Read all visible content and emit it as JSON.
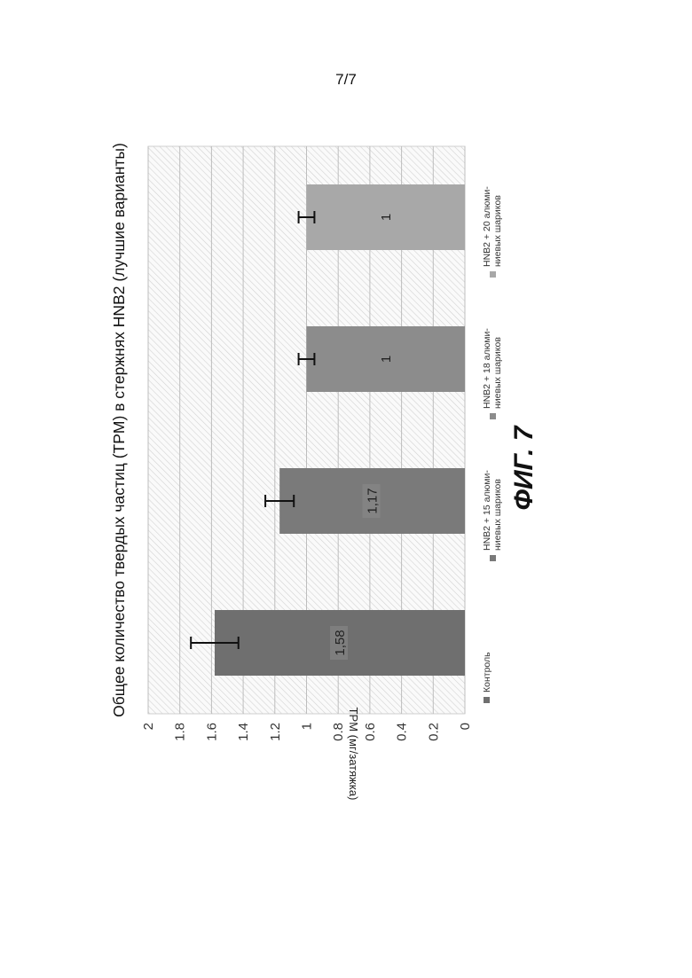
{
  "page_number": "7/7",
  "figure_caption": "ФИГ. 7",
  "chart_data": {
    "type": "bar",
    "title": "Общее количество твердых частиц (TPM) в стержнях HNB2 (лучшие варианты)",
    "xlabel": "",
    "ylabel": "TPM (мг/затяжка)",
    "ylim": [
      0,
      2
    ],
    "y_ticks": [
      0,
      0.2,
      0.4,
      0.6,
      0.8,
      1,
      1.2,
      1.4,
      1.6,
      1.8,
      2
    ],
    "y_tick_labels": [
      "0",
      "0.2",
      "0.4",
      "0.6",
      "0.8",
      "1",
      "1.2",
      "1.4",
      "1.6",
      "1.8",
      "2"
    ],
    "grid": true,
    "legend_position": "bottom",
    "orientation": "rotated-90-clockwise",
    "series": [
      {
        "name": "Контроль",
        "value": 1.58,
        "label": "1,58",
        "error": 0.15,
        "color": "#6f6f6f",
        "legend_lines": [
          "Контроль"
        ]
      },
      {
        "name": "HNB2 + 15 алюминиевых шариков",
        "value": 1.17,
        "label": "1,17",
        "error": 0.09,
        "color": "#7a7a7a",
        "legend_lines": [
          "HNB2 + 15 алюми-",
          "ниевых шариков"
        ]
      },
      {
        "name": "HNB2 + 18 алюминиевых шариков",
        "value": 1,
        "label": "1",
        "error": 0.05,
        "color": "#8c8c8c",
        "legend_lines": [
          "HNB2 + 18 алюми-",
          "ниевых шариков"
        ]
      },
      {
        "name": "HNB2 + 20 алюминиевых шариков",
        "value": 1,
        "label": "1",
        "error": 0.05,
        "color": "#a8a8a8",
        "legend_lines": [
          "HNB2 + 20 алюми-",
          "ниевых шариков"
        ]
      }
    ]
  }
}
